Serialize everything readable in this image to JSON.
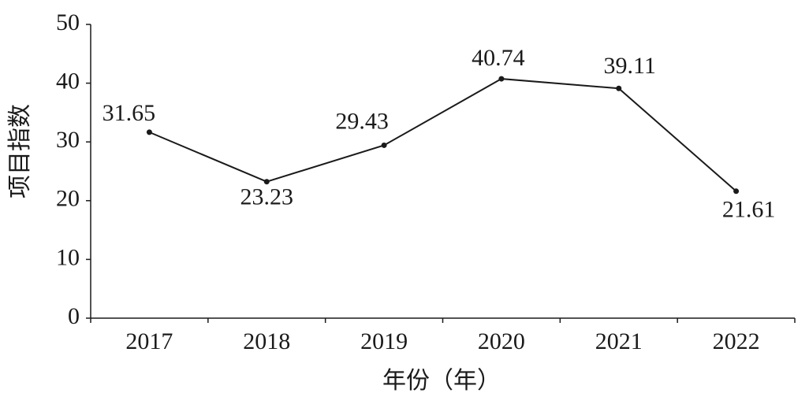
{
  "chart_data": {
    "type": "line",
    "x_label": "年份（年）",
    "y_label": "项目指数",
    "categories": [
      "2017",
      "2018",
      "2019",
      "2020",
      "2021",
      "2022"
    ],
    "values": [
      31.65,
      23.23,
      29.43,
      40.74,
      39.11,
      21.61
    ],
    "color": "#1a1a1a",
    "ylim": [
      0,
      50
    ],
    "yticks": [
      0,
      10,
      20,
      30,
      40,
      50
    ],
    "grid": false
  }
}
